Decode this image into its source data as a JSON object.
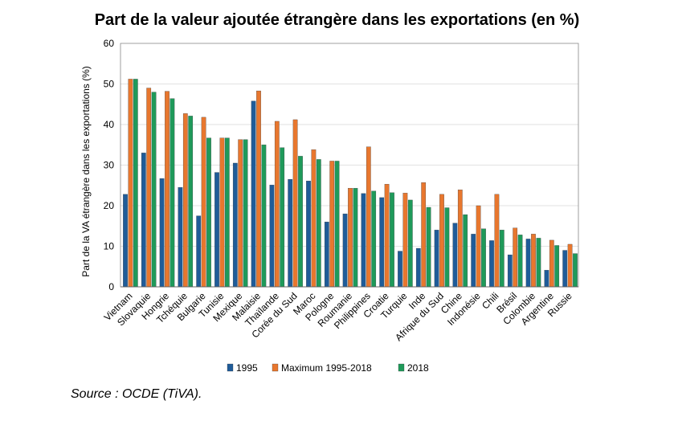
{
  "chart_data": {
    "type": "bar",
    "title": "Part de la valeur ajoutée étrangère dans les exportations (en %)",
    "ylabel": "Part de la VA étrangère dans les exportations (%)",
    "xlabel": "",
    "ylim": [
      0,
      60
    ],
    "yticks": [
      0,
      10,
      20,
      30,
      40,
      50,
      60
    ],
    "grid": true,
    "legend_position": "bottom",
    "categories": [
      "Vietnam",
      "Slovaquie",
      "Hongrie",
      "Tchéquie",
      "Bulgarie",
      "Tunisie",
      "Mexique",
      "Malaisie",
      "Thaïlande",
      "Corée du Sud",
      "Maroc",
      "Pologne",
      "Roumanie",
      "Philippines",
      "Croatie",
      "Turquie",
      "Inde",
      "Afrique du Sud",
      "Chine",
      "Indonésie",
      "Chili",
      "Brésil",
      "Colombie",
      "Argentine",
      "Russie"
    ],
    "series": [
      {
        "name": "1995",
        "color": "#1f5c99",
        "values": [
          22.8,
          33.0,
          26.7,
          24.5,
          17.5,
          28.2,
          30.5,
          45.8,
          25.1,
          26.5,
          26.1,
          16.0,
          18.0,
          23.0,
          22.0,
          8.8,
          9.5,
          14.0,
          15.7,
          13.0,
          11.4,
          7.9,
          11.8,
          4.1,
          9.0
        ]
      },
      {
        "name": "Maximum 1995-2018",
        "color": "#e8772e",
        "values": [
          51.2,
          49.0,
          48.2,
          42.7,
          41.8,
          36.7,
          36.3,
          48.3,
          40.8,
          41.2,
          33.8,
          31.0,
          24.3,
          34.5,
          25.3,
          23.1,
          25.7,
          22.8,
          23.9,
          20.0,
          22.8,
          14.5,
          13.0,
          11.5,
          10.5
        ]
      },
      {
        "name": "2018",
        "color": "#1f9a5a",
        "values": [
          51.2,
          48.0,
          46.4,
          42.1,
          36.7,
          36.7,
          36.3,
          35.0,
          34.3,
          32.2,
          31.4,
          31.0,
          24.3,
          23.6,
          23.2,
          21.4,
          19.6,
          19.5,
          17.8,
          14.3,
          14.0,
          12.8,
          12.0,
          10.2,
          8.2
        ]
      }
    ]
  },
  "source": "Source : OCDE (TiVA)."
}
